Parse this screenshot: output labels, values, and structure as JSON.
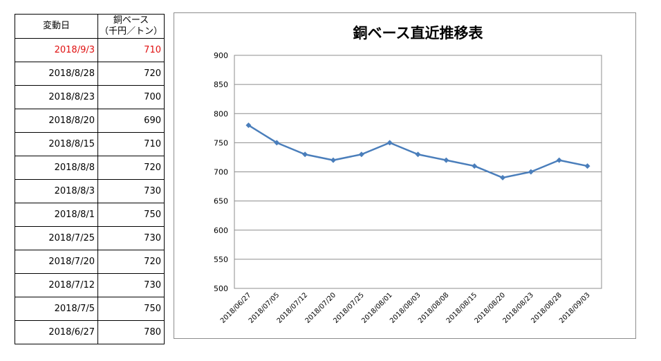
{
  "table": {
    "header": {
      "date_label": "変動日",
      "price_label_line1": "銅ベース",
      "price_label_line2": "（千円／トン）"
    },
    "rows": [
      {
        "date": "2018/9/3",
        "price": "710",
        "latest": true
      },
      {
        "date": "2018/8/28",
        "price": "720"
      },
      {
        "date": "2018/8/23",
        "price": "700"
      },
      {
        "date": "2018/8/20",
        "price": "690"
      },
      {
        "date": "2018/8/15",
        "price": "710"
      },
      {
        "date": "2018/8/8",
        "price": "720"
      },
      {
        "date": "2018/8/3",
        "price": "730"
      },
      {
        "date": "2018/8/1",
        "price": "750"
      },
      {
        "date": "2018/7/25",
        "price": "730"
      },
      {
        "date": "2018/7/20",
        "price": "720"
      },
      {
        "date": "2018/7/12",
        "price": "730"
      },
      {
        "date": "2018/7/5",
        "price": "750"
      },
      {
        "date": "2018/6/27",
        "price": "780"
      }
    ],
    "latest_color": "#e01010"
  },
  "chart_data": {
    "type": "line",
    "title": "銅ベース直近推移表",
    "x": [
      "2018/06/27",
      "2018/07/05",
      "2018/07/12",
      "2018/07/20",
      "2018/07/25",
      "2018/08/01",
      "2018/08/03",
      "2018/08/08",
      "2018/08/15",
      "2018/08/20",
      "2018/08/23",
      "2018/08/28",
      "2018/09/03"
    ],
    "series": [
      {
        "values": [
          780,
          750,
          730,
          720,
          730,
          750,
          730,
          720,
          710,
          690,
          700,
          720,
          710
        ],
        "color": "#4a7ebb",
        "marker": "diamond"
      }
    ],
    "ylim": [
      500,
      900
    ],
    "yticks": [
      500,
      550,
      600,
      650,
      700,
      750,
      800,
      850,
      900
    ],
    "grid": true,
    "legend": "none",
    "xlabel": "",
    "ylabel": ""
  }
}
